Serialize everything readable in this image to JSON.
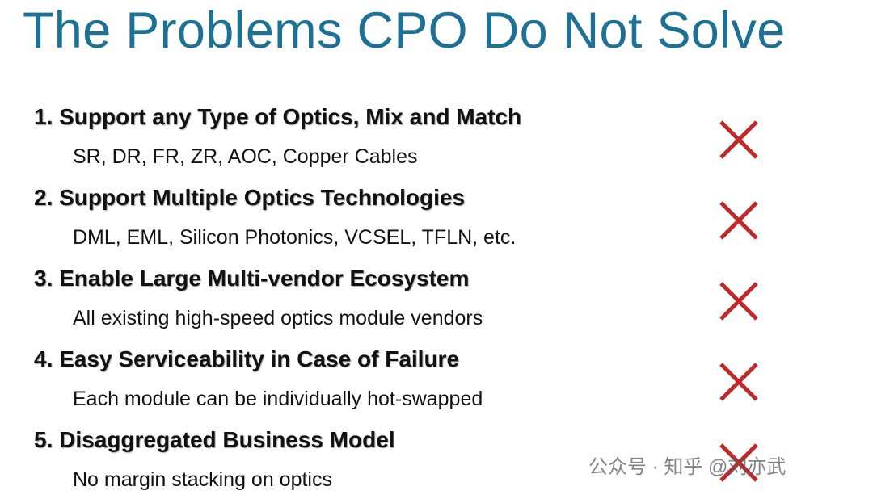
{
  "title": "The Problems CPO Do Not Solve",
  "items": [
    {
      "heading": "1. Support any Type of Optics, Mix and Match",
      "detail": "SR, DR, FR, ZR, AOC, Copper Cables"
    },
    {
      "heading": "2. Support Multiple Optics Technologies",
      "detail": "DML, EML, Silicon Photonics, VCSEL, TFLN, etc."
    },
    {
      "heading": "3. Enable Large Multi-vendor Ecosystem",
      "detail": "All existing high-speed optics module vendors"
    },
    {
      "heading": "4. Easy Serviceability in Case of Failure",
      "detail": "Each module can be individually hot-swapped"
    },
    {
      "heading": "5. Disaggregated Business Model",
      "detail": "No margin stacking on optics"
    }
  ],
  "watermark": "公众号 · 知乎 @刘亦武"
}
